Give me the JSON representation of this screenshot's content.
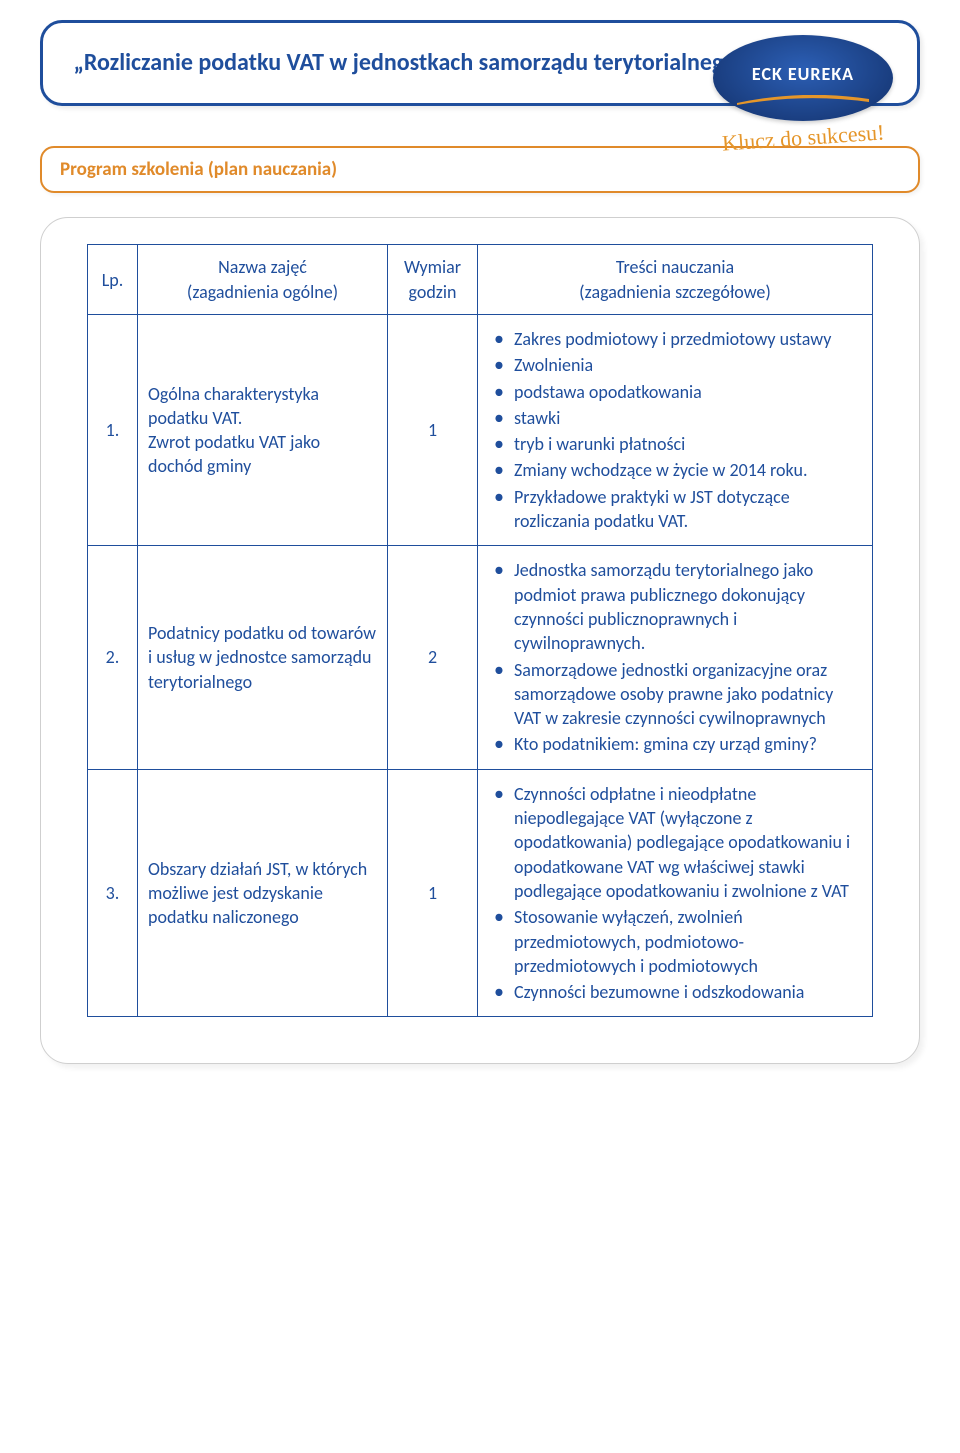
{
  "header": {
    "title": "„Rozliczanie podatku VAT w jednostkach samorządu terytorialnego\"",
    "logo_text": "ECK EUREKA",
    "logo_tagline": "Klucz do sukcesu!"
  },
  "section_label": "Program szkolenia (plan nauczania)",
  "colors": {
    "primary": "#1f4e9c",
    "accent": "#e08a2a",
    "swoosh": "#e5962a",
    "logo_grad_inner": "#2c5fb5",
    "logo_grad_outer": "#0f2a5e"
  },
  "table": {
    "headers": {
      "lp": "Lp.",
      "name": "Nazwa zajęć\n(zagadnienia ogólne)",
      "hours": "Wymiar\ngodzin",
      "content": "Treści nauczania\n(zagadnienia szczegółowe)"
    },
    "rows": [
      {
        "lp": "1.",
        "name": "Ogólna charakterystyka podatku VAT.\nZwrot podatku VAT jako dochód gminy",
        "hours": "1",
        "content": [
          "Zakres podmiotowy i przedmiotowy ustawy",
          "Zwolnienia",
          "podstawa opodatkowania",
          "stawki",
          "tryb i warunki płatności",
          "Zmiany wchodzące w życie w 2014 roku.",
          "Przykładowe praktyki w JST dotyczące rozliczania podatku VAT."
        ]
      },
      {
        "lp": "2.",
        "name": "Podatnicy podatku od towarów i usług w jednostce samorządu terytorialnego",
        "hours": "2",
        "content": [
          "Jednostka samorządu terytorialnego jako podmiot prawa publicznego dokonujący czynności publicznoprawnych i cywilnoprawnych.",
          "Samorządowe jednostki organizacyjne oraz samorządowe osoby prawne jako podatnicy VAT w zakresie czynności cywilnoprawnych",
          "Kto podatnikiem: gmina czy urząd gminy?"
        ]
      },
      {
        "lp": "3.",
        "name": "Obszary działań JST, w których możliwe jest odzyskanie podatku naliczonego",
        "hours": "1",
        "content": [
          "Czynności odpłatne i nieodpłatne niepodlegające VAT (wyłączone z opodatkowania) podlegające opodatkowaniu i opodatkowane VAT wg właściwej stawki podlegające opodatkowaniu i zwolnione z VAT",
          "Stosowanie wyłączeń, zwolnień przedmiotowych, podmiotowo-przedmiotowych i podmiotowych",
          "Czynności bezumowne i odszkodowania"
        ]
      }
    ]
  }
}
